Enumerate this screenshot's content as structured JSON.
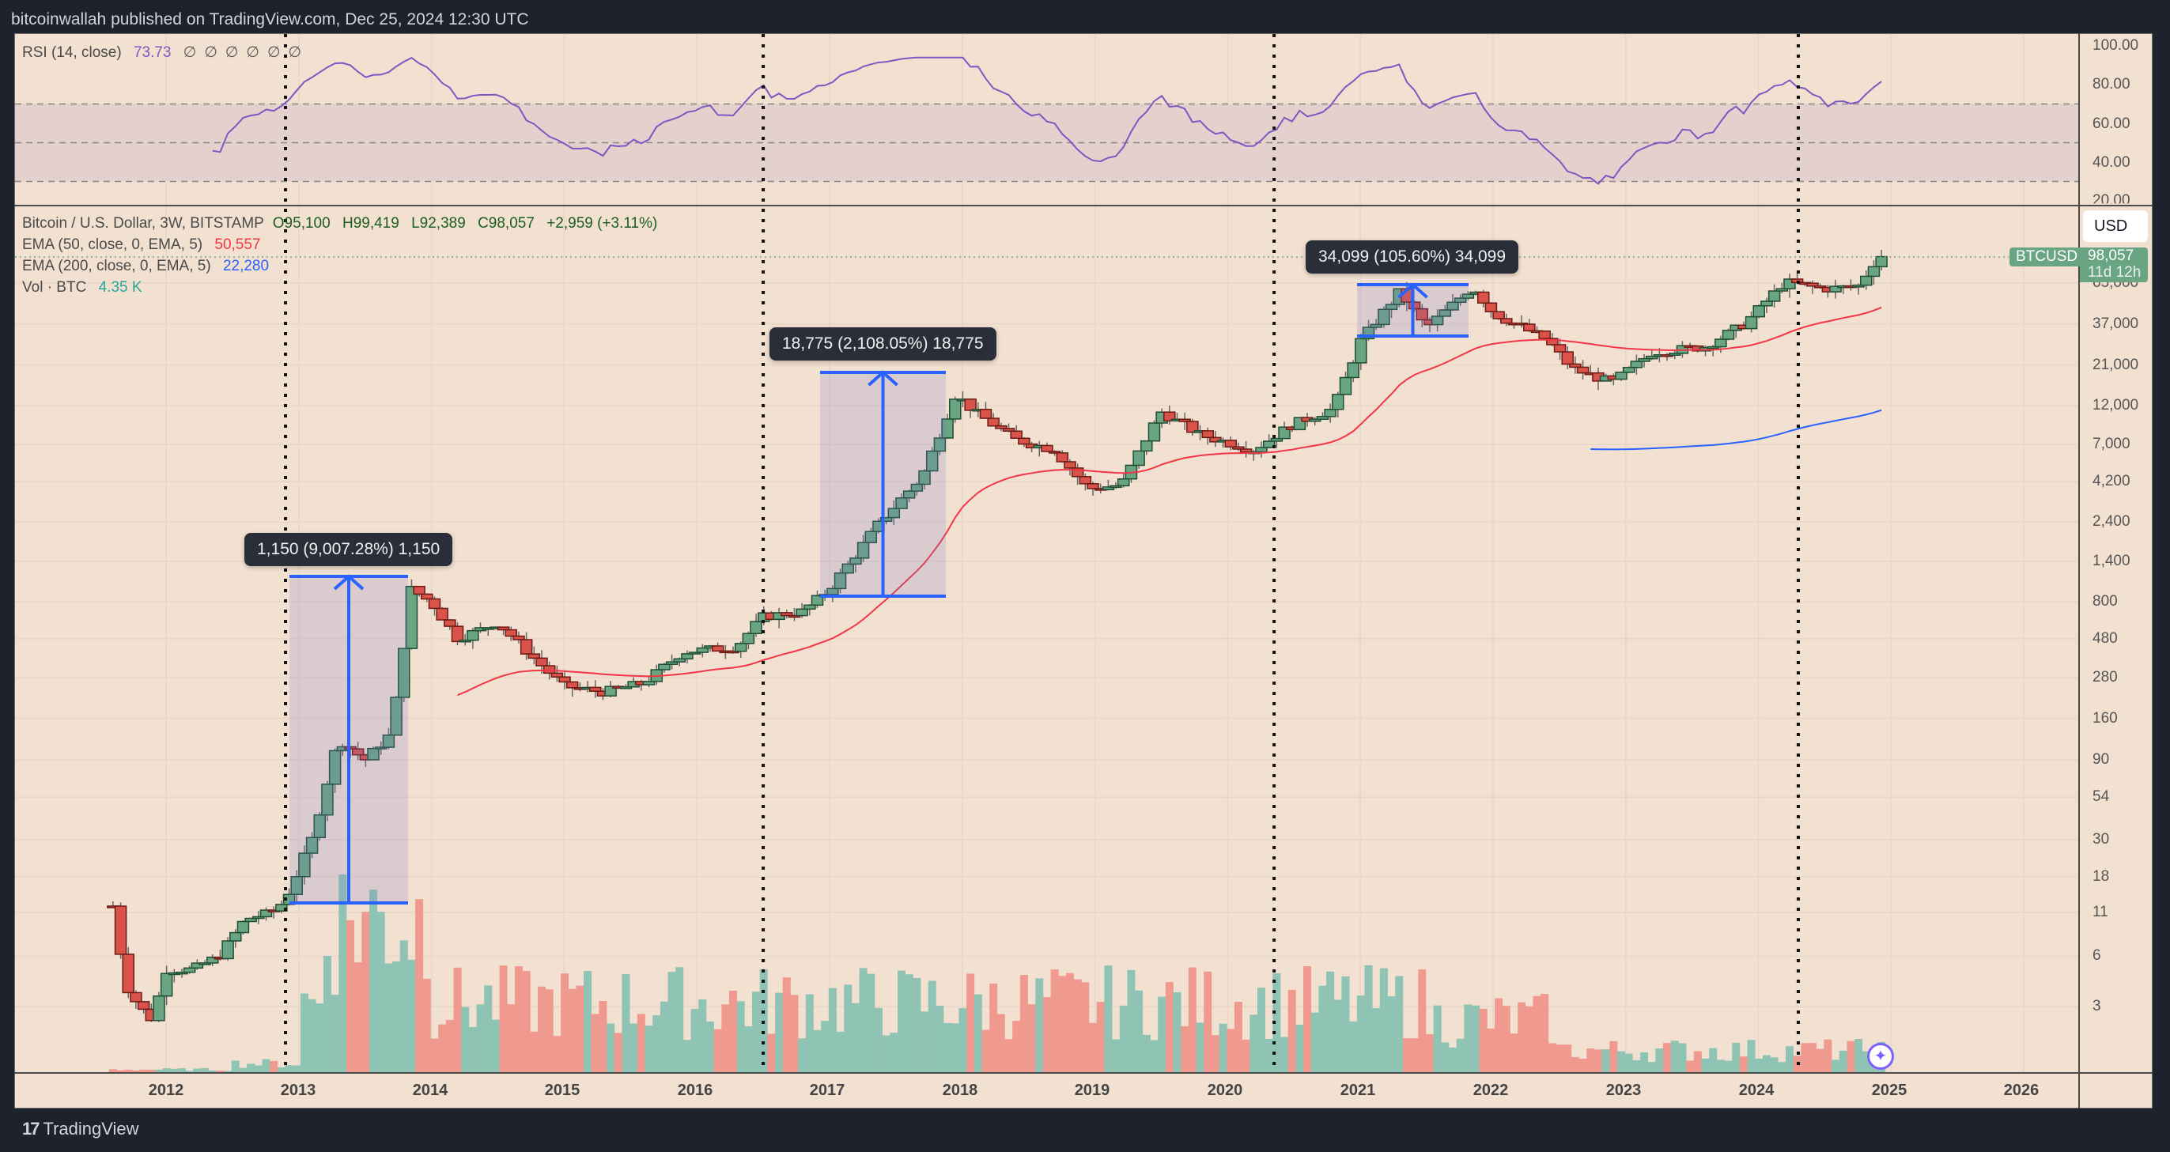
{
  "header": {
    "published": "bitcoinwallah published on TradingView.com, Dec 25, 2024 12:30 UTC"
  },
  "rsi_legend": {
    "name": "RSI (14, close)",
    "value": "73.73",
    "placeholders": "∅∅∅∅∅∅"
  },
  "main_legend": {
    "symbol": "Bitcoin / U.S. Dollar, 3W, BITSTAMP",
    "open": "O95,100",
    "high": "H99,419",
    "low": "L92,389",
    "close": "C98,057",
    "change": "+2,959 (+3.11%)",
    "ema50_label": "EMA (50, close, 0, EMA, 5)",
    "ema50_value": "50,557",
    "ema200_label": "EMA (200, close, 0, EMA, 5)",
    "ema200_value": "22,280",
    "vol_label": "Vol · BTC",
    "vol_value": "4.35 K"
  },
  "price_axis": {
    "currency_button": "USD",
    "symbol_tag": "BTCUSD",
    "last_price": "98,057",
    "countdown": "11d 12h",
    "ticks": [
      "65,000",
      "37,000",
      "21,000",
      "12,000",
      "7,000",
      "4,200",
      "2,400",
      "1,400",
      "800",
      "480",
      "280",
      "160",
      "90",
      "54",
      "30",
      "18",
      "11",
      "6",
      "3"
    ]
  },
  "rsi_axis": {
    "ticks": [
      "100.00",
      "80.00",
      "60.00",
      "40.00",
      "20.00"
    ]
  },
  "time_axis": {
    "ticks": [
      "2012",
      "2013",
      "2014",
      "2015",
      "2016",
      "2017",
      "2018",
      "2019",
      "2020",
      "2021",
      "2022",
      "2023",
      "2024",
      "2025",
      "2026"
    ]
  },
  "annotations": [
    {
      "label": "1,150 (9,007.28%) 1,150"
    },
    {
      "label": "18,775 (2,108.05%) 18,775"
    },
    {
      "label": "34,099 (105.60%) 34,099"
    }
  ],
  "footer": {
    "brand": "TradingView"
  },
  "colors": {
    "up": "#6aa583",
    "down": "#d9534a",
    "ema50": "#f23645",
    "ema200": "#2962ff",
    "rsi": "#7e57c2",
    "bg": "#f2e0d0",
    "measure": "#2962ff"
  },
  "chart_data": {
    "type": "candlestick",
    "title": "Bitcoin / U.S. Dollar, 3W, BITSTAMP",
    "xlabel": "",
    "ylabel": "USD (log scale)",
    "ylim": [
      1.5,
      110000
    ],
    "x_ticks": [
      "2012",
      "2013",
      "2014",
      "2015",
      "2016",
      "2017",
      "2018",
      "2019",
      "2020",
      "2021",
      "2022",
      "2023",
      "2024",
      "2025",
      "2026"
    ],
    "last": {
      "open": 95100,
      "high": 99419,
      "low": 92389,
      "close": 98057,
      "change": 2959,
      "change_pct": 3.11
    },
    "indicators": {
      "ema50": 50557,
      "ema200": 22280,
      "volume_btc_k": 4.35,
      "rsi14": 73.73
    },
    "halving_markers": [
      "2012-11",
      "2016-07",
      "2020-05",
      "2024-04"
    ],
    "measurements": [
      {
        "from": 13,
        "to": 1150,
        "gain_pct": 9007.28,
        "period": "2013"
      },
      {
        "from": 850,
        "to": 18775,
        "gain_pct": 2108.05,
        "period": "2017"
      },
      {
        "from": 32300,
        "to": 66400,
        "gain_pct": 105.6,
        "period": "2021"
      }
    ],
    "price_path": [
      [
        2011.6,
        12
      ],
      [
        2011.7,
        4
      ],
      [
        2011.8,
        3
      ],
      [
        2011.9,
        2.5
      ],
      [
        2012.0,
        5
      ],
      [
        2012.2,
        5
      ],
      [
        2012.4,
        6
      ],
      [
        2012.6,
        10
      ],
      [
        2012.8,
        11
      ],
      [
        2012.9,
        13
      ],
      [
        2013.1,
        30
      ],
      [
        2013.3,
        120
      ],
      [
        2013.5,
        90
      ],
      [
        2013.7,
        130
      ],
      [
        2013.85,
        950
      ],
      [
        2014.0,
        800
      ],
      [
        2014.2,
        480
      ],
      [
        2014.5,
        600
      ],
      [
        2014.8,
        350
      ],
      [
        2015.0,
        250
      ],
      [
        2015.3,
        230
      ],
      [
        2015.6,
        260
      ],
      [
        2015.9,
        400
      ],
      [
        2016.3,
        430
      ],
      [
        2016.5,
        650
      ],
      [
        2016.8,
        700
      ],
      [
        2017.0,
        950
      ],
      [
        2017.4,
        2500
      ],
      [
        2017.7,
        4500
      ],
      [
        2017.95,
        14000
      ],
      [
        2018.1,
        11000
      ],
      [
        2018.4,
        7500
      ],
      [
        2018.7,
        6500
      ],
      [
        2018.95,
        3800
      ],
      [
        2019.2,
        4000
      ],
      [
        2019.5,
        11000
      ],
      [
        2019.8,
        8000
      ],
      [
        2020.2,
        6500
      ],
      [
        2020.5,
        9300
      ],
      [
        2020.8,
        11500
      ],
      [
        2021.0,
        29000
      ],
      [
        2021.3,
        58000
      ],
      [
        2021.5,
        35000
      ],
      [
        2021.85,
        62000
      ],
      [
        2022.0,
        43000
      ],
      [
        2022.4,
        30000
      ],
      [
        2022.6,
        20000
      ],
      [
        2022.9,
        16500
      ],
      [
        2023.2,
        25000
      ],
      [
        2023.6,
        27000
      ],
      [
        2023.9,
        37000
      ],
      [
        2024.2,
        66000
      ],
      [
        2024.5,
        60000
      ],
      [
        2024.75,
        62000
      ],
      [
        2024.9,
        93000
      ],
      [
        2024.98,
        98057
      ]
    ]
  }
}
